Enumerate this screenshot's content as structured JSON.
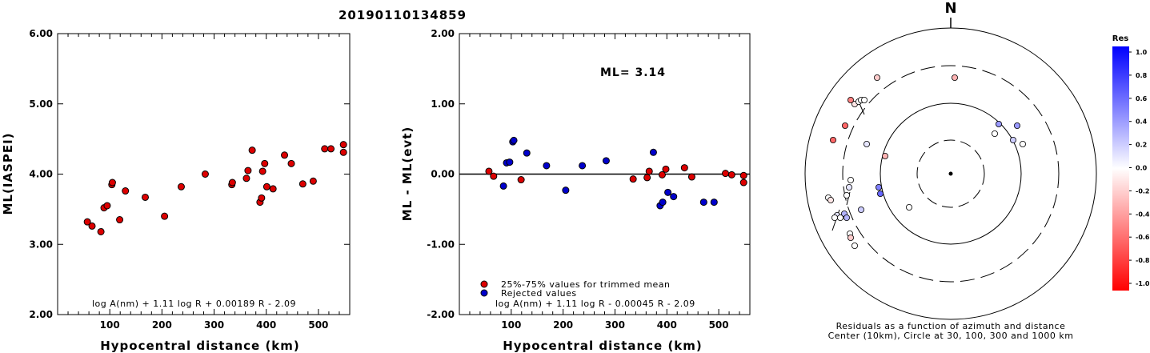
{
  "title": "20190110134859",
  "chart_data": [
    {
      "type": "scatter",
      "xlabel": "Hypocentral distance (km)",
      "ylabel": "ML(IASPEI)",
      "xlim": [
        0,
        560
      ],
      "ylim": [
        2.0,
        6.0
      ],
      "xticks": [
        "100",
        "200",
        "300",
        "400",
        "500"
      ],
      "yticks": [
        "2.00",
        "3.00",
        "4.00",
        "5.00",
        "6.00"
      ],
      "formula": "log A(nm) + 1.11 log R + 0.00189 R - 2.09",
      "marker_color": "#dd0000",
      "points": [
        [
          57,
          3.32
        ],
        [
          66,
          3.26
        ],
        [
          83,
          3.18
        ],
        [
          89,
          3.52
        ],
        [
          95,
          3.55
        ],
        [
          104,
          3.85
        ],
        [
          105,
          3.88
        ],
        [
          119,
          3.35
        ],
        [
          130,
          3.76
        ],
        [
          168,
          3.67
        ],
        [
          205,
          3.4
        ],
        [
          237,
          3.82
        ],
        [
          283,
          4.0
        ],
        [
          334,
          3.85
        ],
        [
          335,
          3.88
        ],
        [
          362,
          3.94
        ],
        [
          365,
          4.05
        ],
        [
          373,
          4.34
        ],
        [
          388,
          3.6
        ],
        [
          391,
          3.66
        ],
        [
          393,
          4.04
        ],
        [
          397,
          4.15
        ],
        [
          401,
          3.82
        ],
        [
          413,
          3.79
        ],
        [
          435,
          4.27
        ],
        [
          448,
          4.15
        ],
        [
          470,
          3.86
        ],
        [
          490,
          3.9
        ],
        [
          512,
          4.36
        ],
        [
          524,
          4.36
        ],
        [
          548,
          4.42
        ],
        [
          548,
          4.31
        ]
      ]
    },
    {
      "type": "scatter",
      "xlabel": "Hypocentral distance (km)",
      "ylabel": "ML - ML(evt)",
      "xlim": [
        0,
        560
      ],
      "ylim": [
        -2.0,
        2.0
      ],
      "xticks": [
        "100",
        "200",
        "300",
        "400",
        "500"
      ],
      "yticks": [
        "-2.00",
        "-1.00",
        "0.00",
        "1.00",
        "2.00"
      ],
      "annotation": "ML= 3.14",
      "formula": "log A(nm) + 1.11 log R - 0.00045 R - 2.09",
      "legend": {
        "placement": "bottom-left",
        "entries": [
          {
            "label": "25%-75% values for trimmed mean",
            "color": "#dd0000"
          },
          {
            "label": "Rejected values",
            "color": "#0000cc"
          }
        ]
      },
      "series": [
        {
          "color": "#dd0000",
          "points": [
            [
              57,
              0.04
            ],
            [
              66,
              -0.03
            ],
            [
              119,
              -0.08
            ],
            [
              335,
              -0.07
            ],
            [
              362,
              -0.05
            ],
            [
              366,
              0.04
            ],
            [
              391,
              -0.01
            ],
            [
              398,
              0.07
            ],
            [
              434,
              0.09
            ],
            [
              448,
              -0.04
            ],
            [
              513,
              0.01
            ],
            [
              525,
              -0.01
            ],
            [
              548,
              -0.02
            ],
            [
              548,
              -0.12
            ]
          ]
        },
        {
          "color": "#0000cc",
          "points": [
            [
              85,
              -0.17
            ],
            [
              91,
              0.16
            ],
            [
              97,
              0.17
            ],
            [
              103,
              0.46
            ],
            [
              105,
              0.48
            ],
            [
              130,
              0.3
            ],
            [
              168,
              0.12
            ],
            [
              205,
              -0.23
            ],
            [
              237,
              0.12
            ],
            [
              283,
              0.19
            ],
            [
              374,
              0.31
            ],
            [
              387,
              -0.45
            ],
            [
              392,
              -0.4
            ],
            [
              402,
              -0.26
            ],
            [
              413,
              -0.32
            ],
            [
              471,
              -0.4
            ],
            [
              491,
              -0.4
            ]
          ]
        }
      ]
    },
    {
      "type": "scatter",
      "north_label": "N",
      "caption_line1": "Residuals as a function of azimuth and distance",
      "caption_line2": "Center (10km), Circle at 30, 100, 300 and 1000 km",
      "colorbar": {
        "title": "Res",
        "ticks": [
          "1.0",
          "0.8",
          "0.6",
          "0.4",
          "0.2",
          "0.0",
          "-0.2",
          "-0.4",
          "-0.6",
          "-0.8",
          "-1.0"
        ]
      },
      "residual_points": [
        {
          "x": -92,
          "y": -120,
          "res": -0.2
        },
        {
          "x": 5,
          "y": -120,
          "res": -0.3
        },
        {
          "x": -125,
          "y": -92,
          "res": -0.5
        },
        {
          "x": -120,
          "y": -87,
          "res": -0.1
        },
        {
          "x": -115,
          "y": -90,
          "res": 0.0
        },
        {
          "x": -112,
          "y": -92,
          "res": 0.0
        },
        {
          "x": -108,
          "y": -92,
          "res": 0.0
        },
        {
          "x": -132,
          "y": -60,
          "res": -0.6
        },
        {
          "x": -147,
          "y": -42,
          "res": -0.6
        },
        {
          "x": -105,
          "y": -37,
          "res": 0.1
        },
        {
          "x": -82,
          "y": -22,
          "res": -0.3
        },
        {
          "x": 60,
          "y": -62,
          "res": 0.4
        },
        {
          "x": 83,
          "y": -60,
          "res": 0.4
        },
        {
          "x": 55,
          "y": -50,
          "res": 0.0
        },
        {
          "x": 78,
          "y": -42,
          "res": 0.2
        },
        {
          "x": 90,
          "y": -37,
          "res": 0.0
        },
        {
          "x": -125,
          "y": 8,
          "res": 0.0
        },
        {
          "x": -90,
          "y": 17,
          "res": 0.5
        },
        {
          "x": -88,
          "y": 25,
          "res": 0.6
        },
        {
          "x": -127,
          "y": 17,
          "res": 0.1
        },
        {
          "x": -153,
          "y": 30,
          "res": 0.0
        },
        {
          "x": -150,
          "y": 33,
          "res": -0.1
        },
        {
          "x": -130,
          "y": 27,
          "res": 0.0
        },
        {
          "x": -52,
          "y": 42,
          "res": 0.0
        },
        {
          "x": -112,
          "y": 45,
          "res": 0.2
        },
        {
          "x": -142,
          "y": 52,
          "res": 0.1
        },
        {
          "x": -133,
          "y": 50,
          "res": 0.3
        },
        {
          "x": -130,
          "y": 55,
          "res": 0.3
        },
        {
          "x": -145,
          "y": 55,
          "res": 0.0
        },
        {
          "x": -138,
          "y": 55,
          "res": 0.0
        },
        {
          "x": -126,
          "y": 75,
          "res": 0.0
        },
        {
          "x": -125,
          "y": 80,
          "res": -0.2
        },
        {
          "x": -120,
          "y": 90,
          "res": 0.0
        }
      ]
    }
  ]
}
